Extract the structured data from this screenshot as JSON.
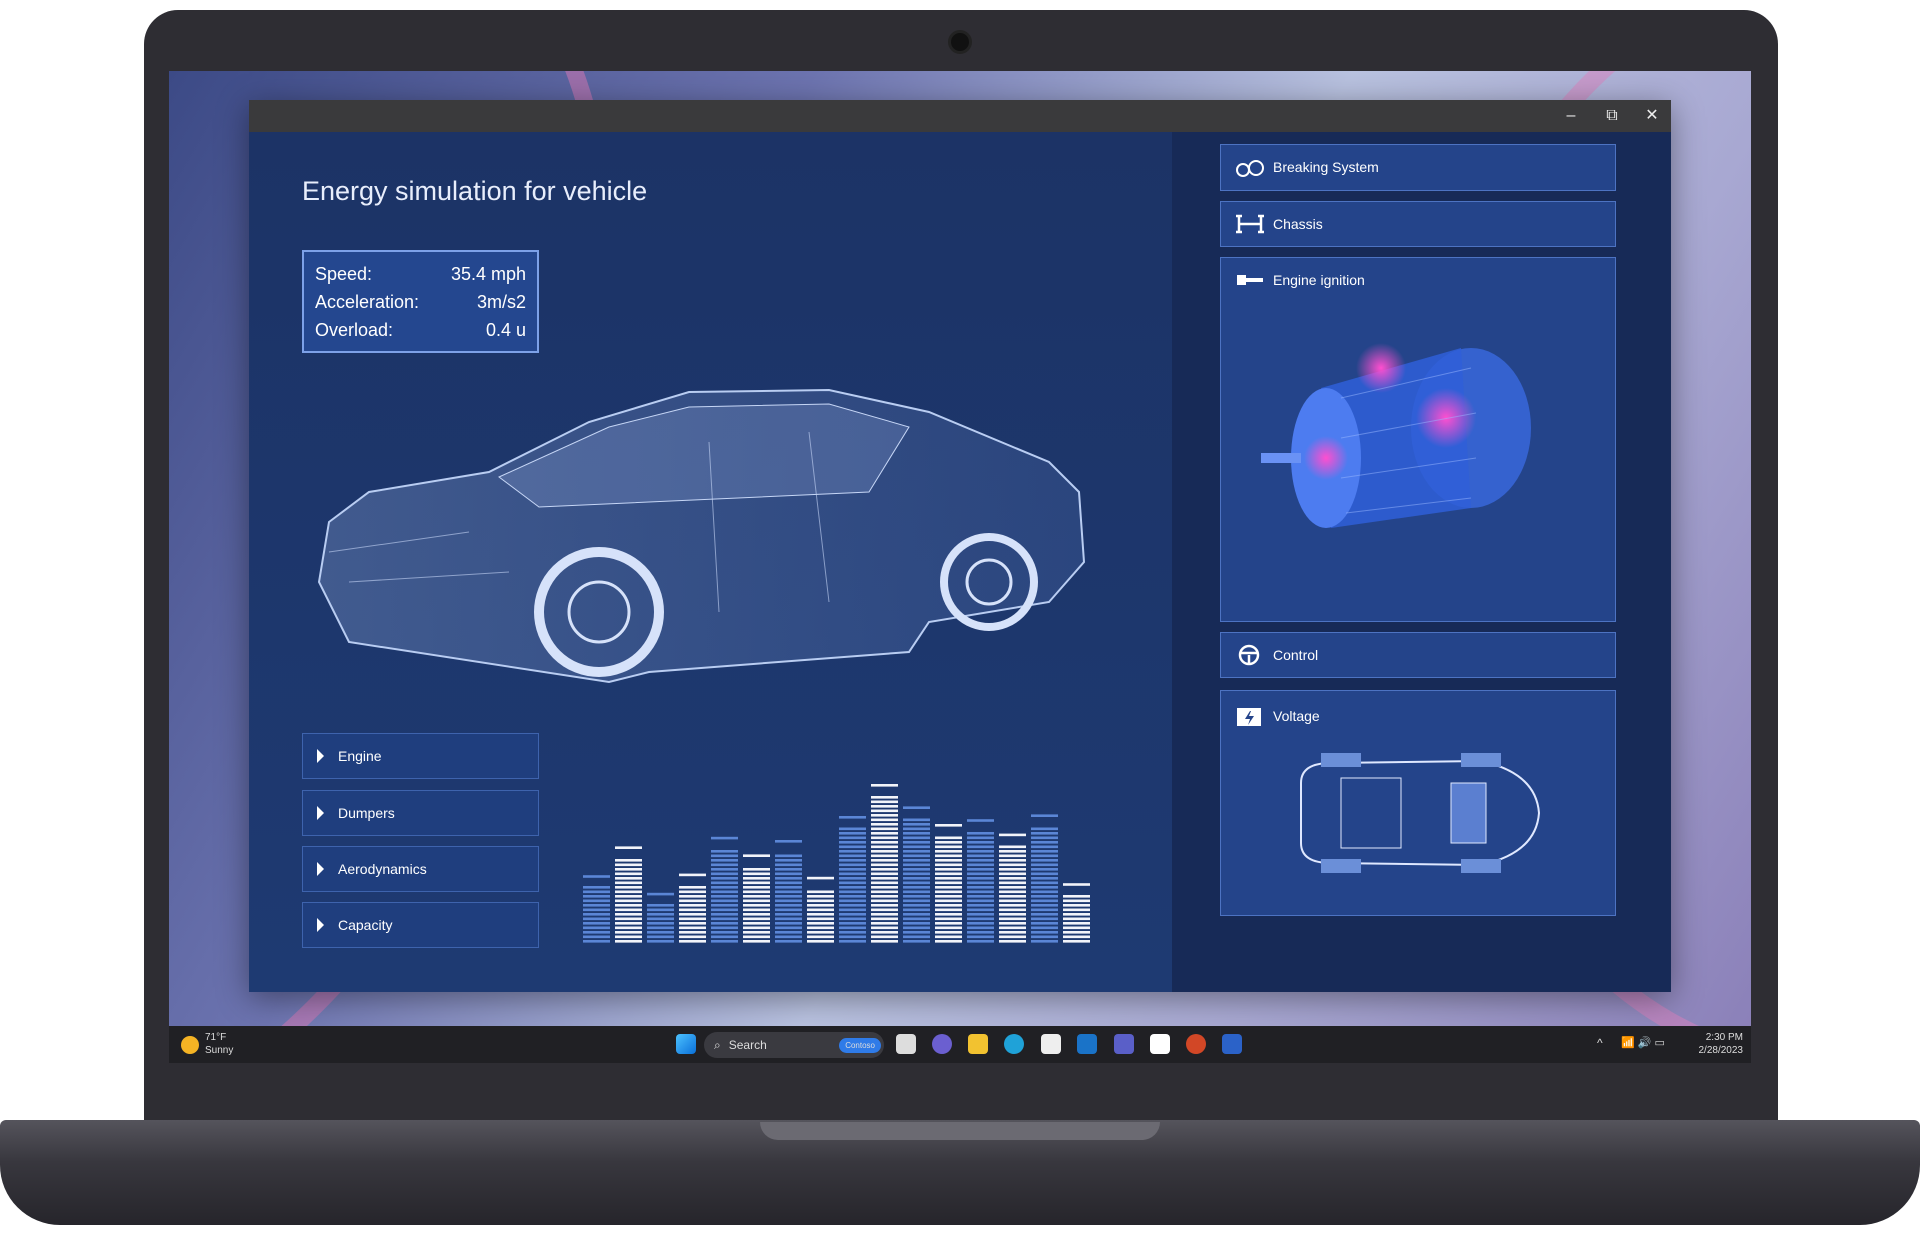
{
  "app": {
    "title": "Energy simulation for vehicle",
    "window_controls": {
      "minimize": "–",
      "restore": "⧉",
      "close": "✕"
    },
    "stats": [
      {
        "label": "Speed:",
        "value": "35.4 mph"
      },
      {
        "label": "Acceleration:",
        "value": "3m/s2"
      },
      {
        "label": "Overload:",
        "value": "0.4 u"
      }
    ],
    "sections": [
      {
        "label": "Engine"
      },
      {
        "label": "Dumpers"
      },
      {
        "label": "Aerodynamics"
      },
      {
        "label": "Capacity"
      }
    ],
    "panels": [
      {
        "label": "Breaking System",
        "icon": "brake-icon"
      },
      {
        "label": "Chassis",
        "icon": "chassis-icon"
      },
      {
        "label": "Engine ignition",
        "icon": "ignition-icon"
      },
      {
        "label": "Control",
        "icon": "steering-wheel-icon"
      },
      {
        "label": "Voltage",
        "icon": "battery-icon"
      }
    ],
    "equalizer": {
      "levels": [
        43,
        61,
        32,
        44,
        67,
        56,
        65,
        42,
        80,
        100,
        86,
        75,
        78,
        69,
        81,
        38
      ],
      "colors": [
        "#5b86d6",
        "#f2f4fa"
      ]
    }
  },
  "taskbar": {
    "weather_temp": "71°F",
    "weather_desc": "Sunny",
    "search_placeholder": "Search",
    "search_badge": "Contoso",
    "time": "2:30 PM",
    "date": "2/28/2023",
    "apps": [
      "start-icon",
      "task-view-icon",
      "teams-chat-icon",
      "file-explorer-icon",
      "edge-icon",
      "store-icon",
      "outlook-icon",
      "teams-icon",
      "app-icon",
      "powerpoint-icon",
      "word-icon"
    ]
  }
}
